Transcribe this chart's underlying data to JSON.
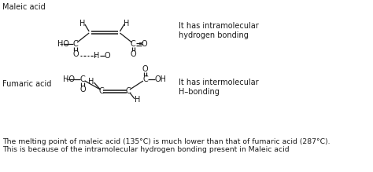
{
  "title_maleic": "Maleic acid",
  "title_fumaric": "Fumaric acid",
  "annotation_maleic": "It has intramolecular\nhydrogen bonding",
  "annotation_fumaric": "It has intermolecular\nH–bonding",
  "footer": "The melting point of maleic acid (135°C) is much lower than that of fumaric acid (287°C).\nThis is because of the intramolecular hydrogen bonding present in Maleic acid",
  "bg_color": "#ffffff",
  "text_color": "#1a1a1a",
  "font_size": 7.0
}
